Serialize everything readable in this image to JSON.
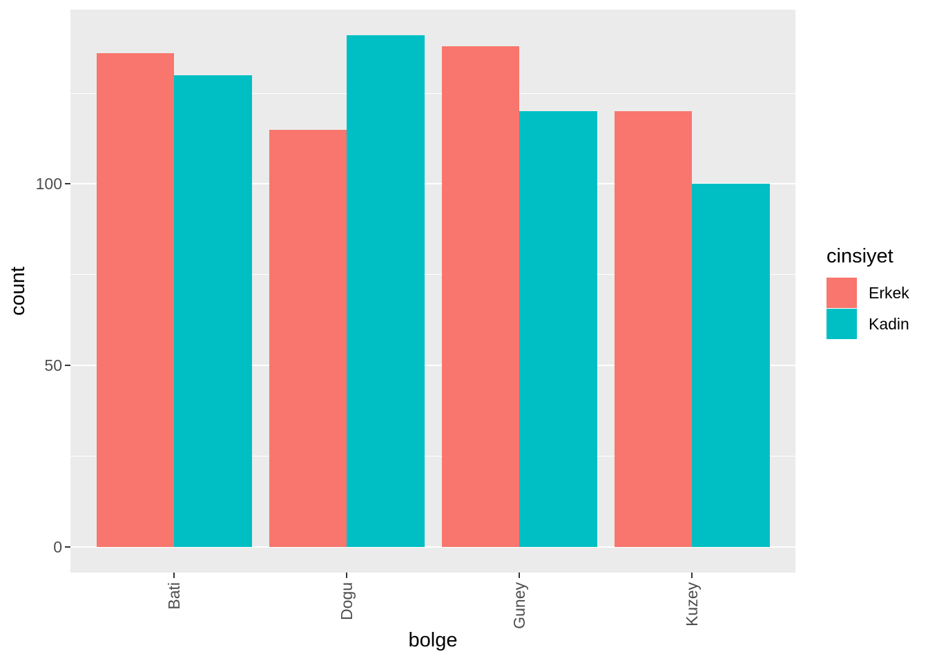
{
  "chart_data": {
    "type": "bar",
    "mode": "grouped-dodge",
    "title": "",
    "xlabel": "bolge",
    "ylabel": "count",
    "categories": [
      "Bati",
      "Dogu",
      "Guney",
      "Kuzey"
    ],
    "series": [
      {
        "name": "Erkek",
        "color": "#F8766D",
        "values": [
          136,
          115,
          138,
          120
        ]
      },
      {
        "name": "Kadin",
        "color": "#00BFC4",
        "values": [
          130,
          141,
          120,
          100
        ]
      }
    ],
    "y_ticks": [
      0,
      50,
      100
    ],
    "y_minor_gridlines": [
      25,
      75,
      125
    ],
    "ylim": [
      -7.05,
      148.05
    ],
    "grid": true,
    "legend": {
      "title": "cinsiyet",
      "position": "right",
      "entries": [
        "Erkek",
        "Kadin"
      ]
    },
    "colors": {
      "panel_background": "#EBEBEB",
      "gridline": "#FFFFFF",
      "tick_label": "#4D4D4D",
      "axis_title": "#000000",
      "tick_mark": "#333333",
      "figure_background": "#FFFFFF"
    }
  }
}
